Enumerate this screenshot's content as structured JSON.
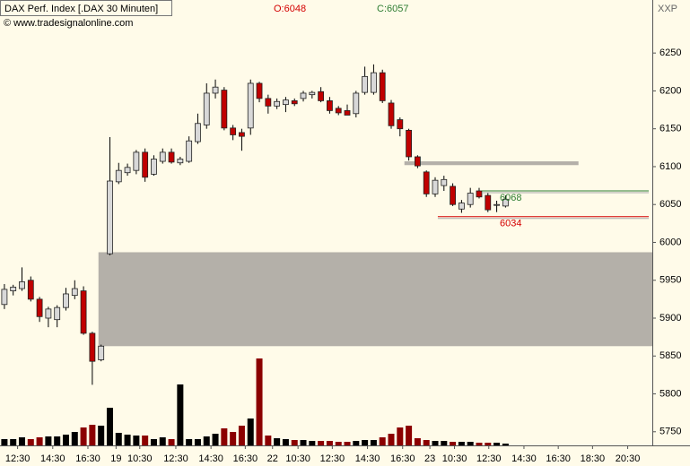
{
  "chart_data": {
    "type": "candlestick",
    "title": "DAX Perf. Index [.DAX  30 Minuten]",
    "subtitle": "© www.tradesignalonline.com",
    "open_label": "O:6048",
    "close_label": "C:6057",
    "corner_label": "XXP",
    "xlim": [
      -0.5,
      73.7
    ],
    "xticks": [
      {
        "value": 1.5,
        "label": "12:30"
      },
      {
        "value": 5.5,
        "label": "14:30"
      },
      {
        "value": 9.5,
        "label": "16:30"
      },
      {
        "value": 12.7,
        "label": "19"
      },
      {
        "value": 15.4,
        "label": "10:30"
      },
      {
        "value": 19.5,
        "label": "12:30"
      },
      {
        "value": 23.5,
        "label": "14:30"
      },
      {
        "value": 27.4,
        "label": "16:30"
      },
      {
        "value": 30.5,
        "label": "22"
      },
      {
        "value": 33.4,
        "label": "10:30"
      },
      {
        "value": 37.3,
        "label": "12:30"
      },
      {
        "value": 41.3,
        "label": "14:30"
      },
      {
        "value": 45.3,
        "label": "16:30"
      },
      {
        "value": 48.4,
        "label": "23"
      },
      {
        "value": 51.2,
        "label": "10:30"
      },
      {
        "value": 55.1,
        "label": "12:30"
      },
      {
        "value": 59.1,
        "label": "14:30"
      },
      {
        "value": 63,
        "label": "16:30"
      },
      {
        "value": 66.9,
        "label": "18:30"
      },
      {
        "value": 70.9,
        "label": "20:30"
      }
    ],
    "ylim": [
      5732,
      6320
    ],
    "yticks": [
      5750,
      5800,
      5850,
      5900,
      5950,
      6000,
      6050,
      6100,
      6150,
      6200,
      6250
    ],
    "y2lim": [
      0,
      497
    ],
    "up_color": "#d8d8d8",
    "down_color": "#c00000",
    "volume_up_color": "#000000",
    "volume_down_color": "#8b0000",
    "open": [
      5918,
      5936,
      5939,
      5950,
      5925,
      5900,
      5898,
      5914,
      5930,
      5936,
      5880,
      5845,
      5985,
      6080,
      6092,
      6095,
      6119,
      6090,
      6107,
      6119,
      6105,
      6107,
      6133,
      6155,
      6197,
      6201,
      6151,
      6145,
      6151,
      6210,
      6190,
      6180,
      6182,
      6187,
      6190,
      6195,
      6199,
      6187,
      6177,
      6174,
      6170,
      6198,
      6198,
      6224,
      6184,
      6162,
      6148,
      6113,
      6093,
      6064,
      6075,
      6074,
      6044,
      6050,
      6068,
      6062,
      6049,
      6048
    ],
    "high": [
      5945,
      5944,
      5967,
      5955,
      5928,
      5915,
      5917,
      5940,
      5950,
      5942,
      5882,
      5865,
      6139,
      6105,
      6104,
      6122,
      6124,
      6115,
      6124,
      6124,
      6113,
      6140,
      6170,
      6210,
      6215,
      6205,
      6155,
      6150,
      6215,
      6212,
      6195,
      6190,
      6192,
      6190,
      6200,
      6200,
      6205,
      6192,
      6180,
      6182,
      6200,
      6232,
      6235,
      6228,
      6188,
      6165,
      6150,
      6115,
      6095,
      6086,
      6088,
      6078,
      6056,
      6072,
      6072,
      6066,
      6055,
      6062
    ],
    "low": [
      5912,
      5930,
      5936,
      5922,
      5895,
      5888,
      5888,
      5910,
      5925,
      5878,
      5812,
      5843,
      5983,
      6077,
      6088,
      6090,
      6080,
      6088,
      6104,
      6104,
      6102,
      6105,
      6130,
      6150,
      6190,
      6148,
      6135,
      6121,
      6142,
      6185,
      6170,
      6176,
      6172,
      6180,
      6186,
      6190,
      6185,
      6170,
      6168,
      6168,
      6165,
      6195,
      6195,
      6184,
      6150,
      6140,
      6108,
      6098,
      6060,
      6060,
      6068,
      6048,
      6039,
      6046,
      6058,
      6040,
      6040,
      6046
    ],
    "close": [
      5938,
      5941,
      5948,
      5925,
      5902,
      5912,
      5914,
      5932,
      5939,
      5880,
      5843,
      5863,
      6081,
      6095,
      6099,
      6119,
      6086,
      6110,
      6119,
      6106,
      6110,
      6134,
      6157,
      6197,
      6205,
      6151,
      6142,
      6140,
      6210,
      6190,
      6180,
      6186,
      6188,
      6183,
      6197,
      6198,
      6187,
      6174,
      6171,
      6168,
      6197,
      6219,
      6224,
      6187,
      6154,
      6150,
      6113,
      6101,
      6064,
      6082,
      6083,
      6050,
      6052,
      6065,
      6060,
      6043,
      6050,
      6057
    ],
    "volume": [
      7,
      7,
      9,
      7,
      9,
      10,
      10,
      12,
      15,
      20,
      23,
      22,
      42,
      14,
      12,
      11,
      11,
      7,
      9,
      7,
      68,
      7,
      7,
      10,
      13,
      19,
      15,
      22,
      30,
      97,
      11,
      8,
      7,
      6,
      6,
      5,
      5,
      5,
      4,
      4,
      5,
      6,
      6,
      9,
      13,
      20,
      22,
      8,
      6,
      5,
      5,
      4,
      4,
      4,
      3,
      3,
      3,
      2
    ],
    "zones": [
      {
        "low": 5863,
        "high": 5987,
        "start": 10.7,
        "end": 73.7,
        "color": "#b4b0a9"
      },
      {
        "low": 6102,
        "high": 6107,
        "start": 45.5,
        "end": 65.3,
        "color": "#b4b0a9"
      }
    ],
    "levels": [
      {
        "value": 6068,
        "start": 54.3,
        "color": "#2e7d32"
      },
      {
        "value": 6034,
        "start": 49.3,
        "color": "#d40000"
      }
    ]
  }
}
